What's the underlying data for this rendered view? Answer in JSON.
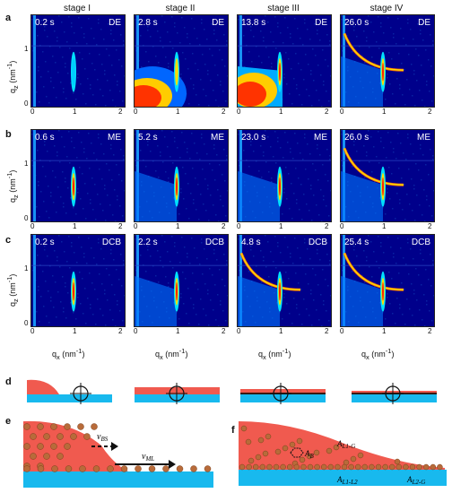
{
  "figure": {
    "stages": [
      "stage I",
      "stage II",
      "stage III",
      "stage IV"
    ],
    "rows": [
      {
        "letter": "a",
        "solvent": "DE",
        "times": [
          "0.2 s",
          "2.8 s",
          "13.8 s",
          "26.0 s"
        ]
      },
      {
        "letter": "b",
        "solvent": "ME",
        "times": [
          "0.6 s",
          "5.2 s",
          "23.0 s",
          "26.0 s"
        ]
      },
      {
        "letter": "c",
        "solvent": "DCB",
        "times": [
          "0.2 s",
          "2.2 s",
          "4.8 s",
          "25.4 s"
        ]
      }
    ],
    "axis": {
      "y_label": "q_z (nm^-1)",
      "x_label": "q_x (nm^-1)",
      "y_ticks": [
        "1",
        "0"
      ],
      "x_ticks": [
        "0",
        "1",
        "2"
      ]
    },
    "schematics": {
      "d_letter": "d",
      "e_letter": "e",
      "f_letter": "f",
      "e_labels": {
        "v_bs": "v_BS",
        "v_ml": "v_ML"
      },
      "f_labels": {
        "a_b": "A_B",
        "a_l1g": "A_L1-G",
        "a_l1l2": "A_L1-L2",
        "a_l2g": "A_L2-G"
      }
    },
    "colors": {
      "map_bg": "#00008b",
      "map_mid": "#0077ff",
      "map_hot": "#ff3300",
      "film_red": "#f05a4f",
      "substrate_blue": "#18b9ee",
      "particle_orange": "#b86b3a"
    }
  }
}
